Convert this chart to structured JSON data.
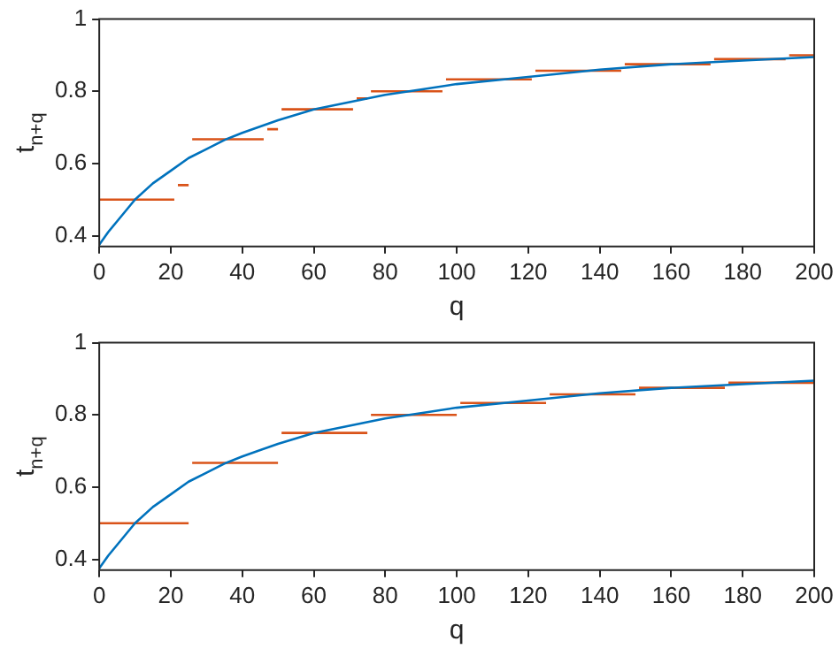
{
  "chart_data": [
    {
      "type": "line",
      "xlabel": "q",
      "ylabel": "t$_{n+q}$",
      "xlim": [
        0,
        200
      ],
      "xticks": [
        0,
        20,
        40,
        60,
        80,
        100,
        120,
        140,
        160,
        180,
        200
      ],
      "ylim": [
        0.37,
        1
      ],
      "yticks": [
        0.4,
        0.6,
        0.8,
        1
      ],
      "grid": false,
      "legend": false,
      "marker": "none",
      "line_style": "solid",
      "series": [
        {
          "color": "#0072bd",
          "x": [
            0,
            2.5,
            5,
            7.5,
            10,
            15,
            20,
            25,
            30,
            35,
            40,
            50,
            60,
            70,
            80,
            90,
            100,
            120,
            140,
            160,
            180,
            200
          ],
          "values": [
            0.375,
            0.41,
            0.44,
            0.47,
            0.5,
            0.545,
            0.58,
            0.615,
            0.64,
            0.665,
            0.685,
            0.72,
            0.75,
            0.77,
            0.79,
            0.805,
            0.82,
            0.84,
            0.86,
            0.875,
            0.885,
            0.895
          ]
        },
        {
          "color": "#d95319",
          "x": [
            0,
            21,
            21.5,
            22,
            25,
            25.5,
            26,
            46,
            46.5,
            47,
            50,
            50.5,
            51,
            71,
            71.5,
            72,
            75,
            75.5,
            76,
            96,
            96.5,
            97,
            121,
            121.5,
            122,
            146,
            146.5,
            147,
            171,
            171.5,
            172,
            192,
            192.5,
            193,
            200
          ],
          "values": [
            0.5,
            0.5,
            null,
            0.54,
            0.54,
            null,
            0.667,
            0.667,
            null,
            0.695,
            0.695,
            null,
            0.75,
            0.75,
            null,
            0.78,
            0.78,
            null,
            0.8,
            0.8,
            null,
            0.833,
            0.833,
            null,
            0.857,
            0.857,
            null,
            0.875,
            0.875,
            null,
            0.889,
            0.889,
            null,
            0.9,
            0.9
          ]
        }
      ]
    },
    {
      "type": "line",
      "xlabel": "q",
      "ylabel": "t$_{n+q}$",
      "xlim": [
        0,
        200
      ],
      "xticks": [
        0,
        20,
        40,
        60,
        80,
        100,
        120,
        140,
        160,
        180,
        200
      ],
      "ylim": [
        0.37,
        1
      ],
      "yticks": [
        0.4,
        0.6,
        0.8,
        1
      ],
      "grid": false,
      "legend": false,
      "marker": "none",
      "line_style": "solid",
      "series": [
        {
          "color": "#0072bd",
          "x": [
            0,
            2.5,
            5,
            7.5,
            10,
            15,
            20,
            25,
            30,
            35,
            40,
            50,
            60,
            70,
            80,
            90,
            100,
            120,
            140,
            160,
            180,
            200
          ],
          "values": [
            0.375,
            0.41,
            0.44,
            0.47,
            0.5,
            0.545,
            0.58,
            0.615,
            0.64,
            0.665,
            0.685,
            0.72,
            0.75,
            0.77,
            0.79,
            0.805,
            0.82,
            0.84,
            0.86,
            0.875,
            0.885,
            0.895
          ]
        },
        {
          "color": "#d95319",
          "x": [
            0,
            25,
            25.5,
            26,
            50,
            50.5,
            51,
            75,
            75.5,
            76,
            100,
            100.5,
            101,
            125,
            125.5,
            126,
            150,
            150.5,
            151,
            175,
            175.5,
            176,
            200
          ],
          "values": [
            0.5,
            0.5,
            null,
            0.667,
            0.667,
            null,
            0.75,
            0.75,
            null,
            0.8,
            0.8,
            null,
            0.833,
            0.833,
            null,
            0.857,
            0.857,
            null,
            0.875,
            0.875,
            null,
            0.889,
            0.889
          ]
        }
      ]
    }
  ]
}
